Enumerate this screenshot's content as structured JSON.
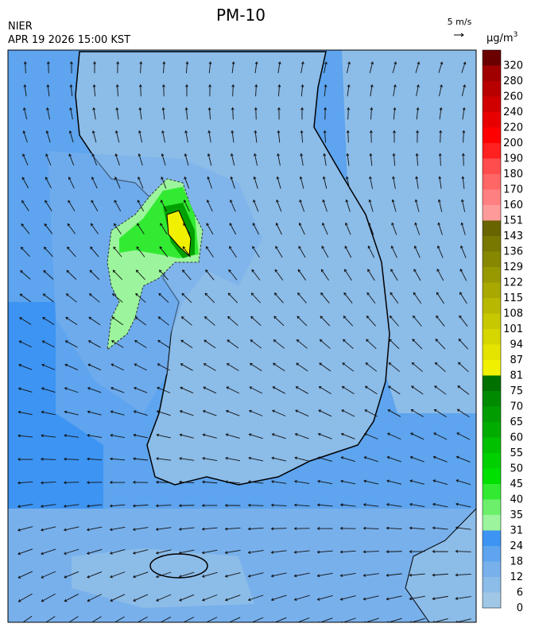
{
  "title": "PM-10",
  "source": "NIER",
  "timestamp": "APR 19 2026 15:00 KST",
  "wind_scale": "5 m/s",
  "unit": "µg/m",
  "unit_sup": "3",
  "colorbar": {
    "levels": [
      0,
      6,
      12,
      18,
      24,
      31,
      35,
      40,
      45,
      50,
      55,
      60,
      65,
      70,
      75,
      81,
      87,
      94,
      101,
      108,
      115,
      122,
      129,
      136,
      143,
      151,
      160,
      170,
      180,
      190,
      200,
      220,
      240,
      260,
      280,
      320
    ],
    "colors": [
      "#a0c8e6",
      "#8cbce8",
      "#78b0ec",
      "#5ea4ee",
      "#3d94f2",
      "#9cf59c",
      "#6cf06c",
      "#33ea33",
      "#00e000",
      "#00d000",
      "#00c000",
      "#00ac00",
      "#009c00",
      "#008a00",
      "#007000",
      "#f0f000",
      "#e4e400",
      "#d6d600",
      "#c8c800",
      "#b8b800",
      "#a8a800",
      "#989800",
      "#888800",
      "#787800",
      "#686400",
      "#ff9a9a",
      "#ff8080",
      "#ff6666",
      "#ff4c4c",
      "#ff2020",
      "#ff0000",
      "#e80000",
      "#d00000",
      "#b80000",
      "#a00000",
      "#6a0000"
    ]
  }
}
